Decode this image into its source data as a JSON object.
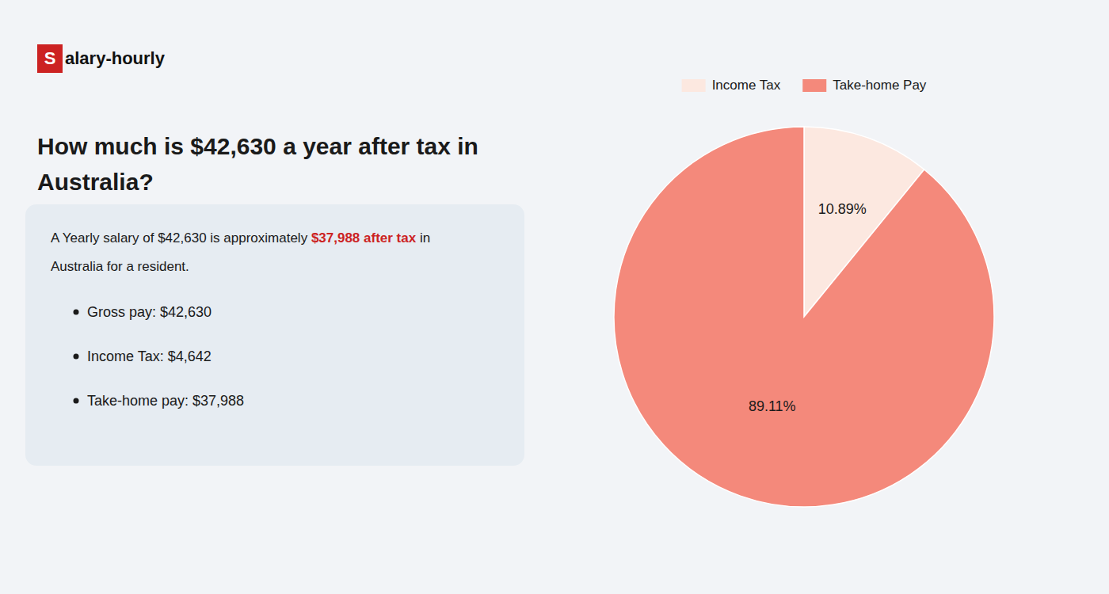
{
  "chart_data": {
    "type": "pie",
    "title": "How much is $42,630 a year after tax in\nAustralia?",
    "categories": [
      "Income Tax",
      "Take-home Pay"
    ],
    "values": [
      10.89,
      89.11
    ],
    "value_labels": [
      "10.89%",
      "89.11%"
    ],
    "colors": [
      "#fce8e0",
      "#f4897b"
    ],
    "data_labels": true,
    "legend": "top",
    "annotations": [
      "S",
      "alary-hourly",
      "A Yearly salary of $42,630 is approximately ",
      "$37,988 after tax",
      " in",
      "Australia for a resident.",
      "Gross pay: $42,630",
      "Income Tax: $4,642",
      "Take-home pay: $37,988"
    ]
  }
}
